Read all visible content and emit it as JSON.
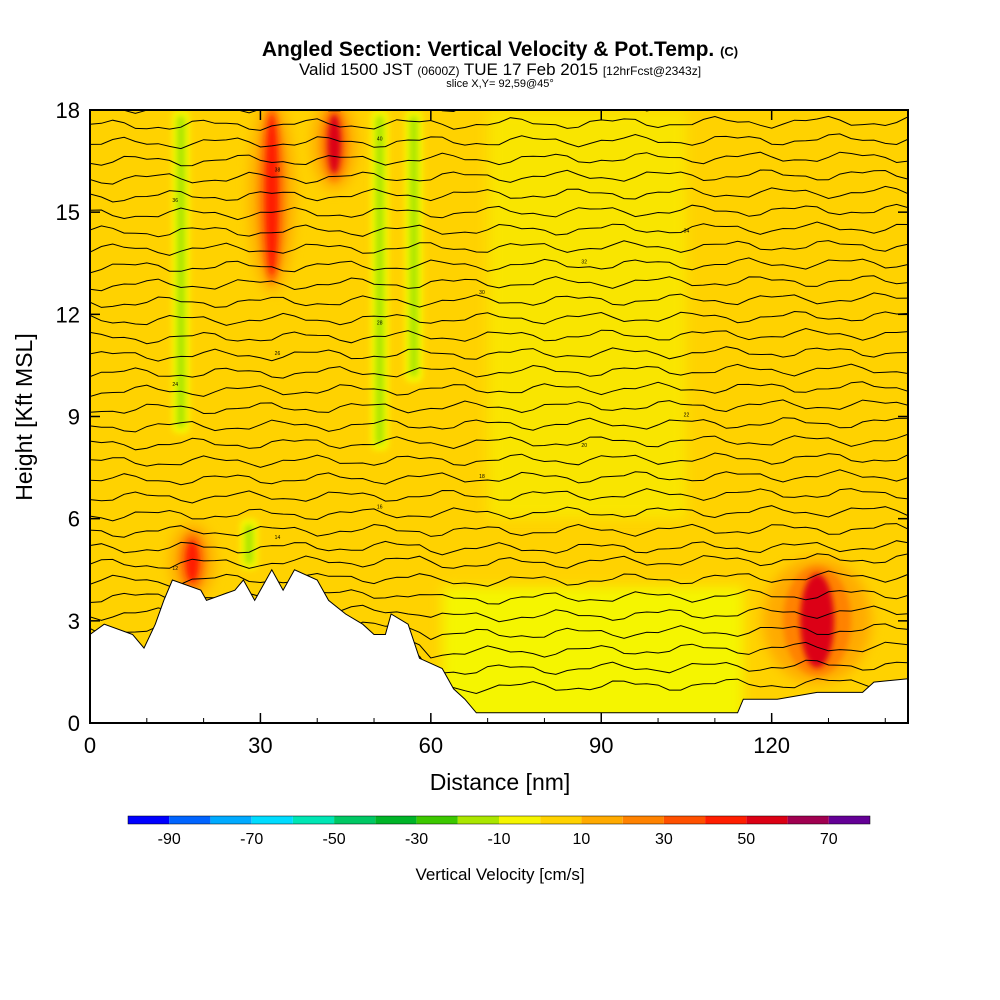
{
  "header": {
    "title": "Angled Section: Vertical Velocity & Pot.Temp.",
    "title_unit": "(C)",
    "valid_prefix": "Valid 1500 JST",
    "valid_z": "(0600Z)",
    "valid_date": "TUE 17 Feb 2015",
    "valid_fcst": "[12hrFcst@2343z]",
    "slice": "slice X,Y= 92,59@45°"
  },
  "chart_data": {
    "type": "heatmap",
    "xlabel": "Distance [nm]",
    "ylabel": "Height [Kft MSL]",
    "xlim": [
      0,
      144
    ],
    "ylim": [
      0,
      18
    ],
    "x_ticks": [
      0,
      30,
      60,
      90,
      120
    ],
    "y_ticks": [
      0,
      3,
      6,
      9,
      12,
      15,
      18
    ],
    "background_value_range": [
      -10,
      10
    ],
    "updraft_cores": [
      {
        "x": 32,
        "y_range": [
          13,
          18
        ],
        "value": 40
      },
      {
        "x": 43,
        "y_range": [
          16,
          18
        ],
        "value": 50
      },
      {
        "x": 18,
        "y_range": [
          4,
          5.5
        ],
        "value": 40
      },
      {
        "x": 128,
        "y_range": [
          1.5,
          4.5
        ],
        "value": 50
      }
    ],
    "downdraft_bands": [
      {
        "x": 16,
        "y_range": [
          8.5,
          18
        ],
        "value": -20
      },
      {
        "x": 51,
        "y_range": [
          8,
          18
        ],
        "value": -20
      },
      {
        "x": 57,
        "y_range": [
          10,
          18
        ],
        "value": -20
      },
      {
        "x": 28,
        "y_range": [
          4.5,
          6
        ],
        "value": -20
      }
    ],
    "terrain_kft": [
      [
        0,
        2.6
      ],
      [
        2.5,
        2.9
      ],
      [
        7.5,
        2.6
      ],
      [
        9.5,
        2.2
      ],
      [
        11.5,
        2.9
      ],
      [
        13,
        3.6
      ],
      [
        14.5,
        4.2
      ],
      [
        19.5,
        3.9
      ],
      [
        20.5,
        3.6
      ],
      [
        25.5,
        3.9
      ],
      [
        27,
        4.2
      ],
      [
        29,
        3.6
      ],
      [
        31,
        4.2
      ],
      [
        32,
        4.5
      ],
      [
        34,
        3.9
      ],
      [
        36,
        4.5
      ],
      [
        40,
        4.2
      ],
      [
        42,
        3.6
      ],
      [
        45,
        3.2
      ],
      [
        48,
        2.9
      ],
      [
        50,
        2.6
      ],
      [
        52,
        2.6
      ],
      [
        53,
        3.2
      ],
      [
        56,
        2.9
      ],
      [
        58,
        1.9
      ],
      [
        62,
        1.6
      ],
      [
        64,
        1.0
      ],
      [
        66,
        0.7
      ],
      [
        68,
        0.3
      ],
      [
        114,
        0.3
      ],
      [
        115,
        0.7
      ],
      [
        121,
        0.7
      ],
      [
        128,
        0.9
      ],
      [
        136,
        0.9
      ],
      [
        138,
        1.2
      ],
      [
        144,
        1.3
      ]
    ],
    "isentrope_labels": [
      "12",
      "14",
      "16",
      "18",
      "20",
      "22",
      "24",
      "26",
      "28",
      "30",
      "32",
      "34",
      "36",
      "38",
      "40"
    ],
    "colorbar": {
      "title": "Vertical Velocity [cm/s]",
      "tick_labels": [
        "-90",
        "-70",
        "-50",
        "-30",
        "-10",
        "10",
        "30",
        "50",
        "70"
      ],
      "colors": [
        "#0000ff",
        "#0064ff",
        "#00aaff",
        "#00dcff",
        "#00e6b4",
        "#00c864",
        "#00b428",
        "#3cc800",
        "#aae600",
        "#f5f500",
        "#ffd200",
        "#ffaa00",
        "#ff8200",
        "#ff5000",
        "#ff1e00",
        "#dc0014",
        "#a00050",
        "#640096"
      ]
    }
  }
}
